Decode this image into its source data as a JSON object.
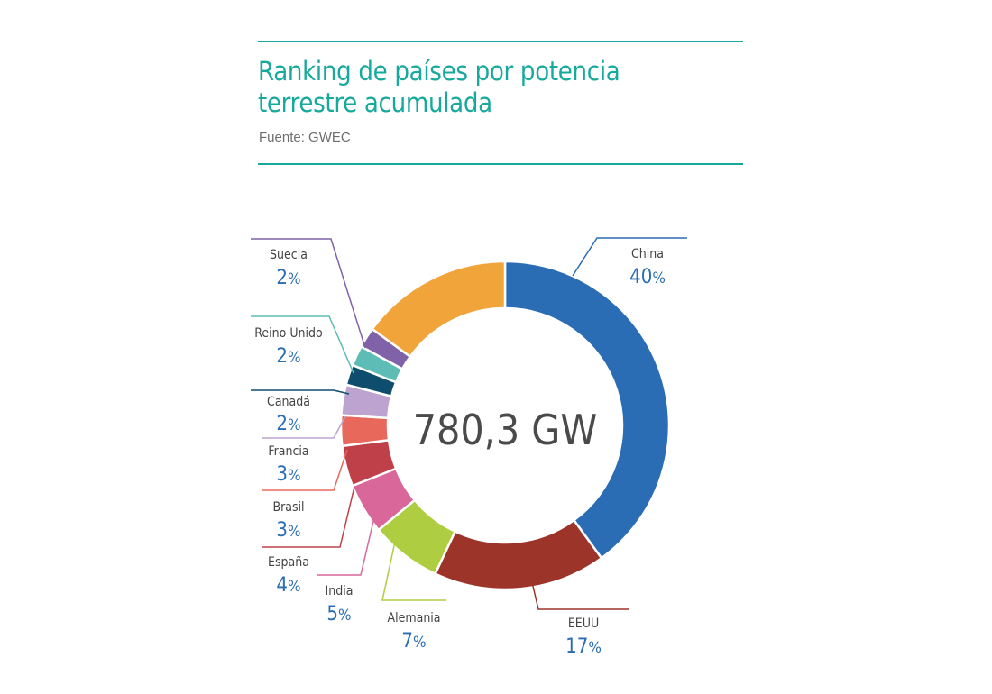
{
  "header": {
    "title_line1": "Ranking de países por potencia",
    "title_line2": "terrestre acumulada",
    "source": "Fuente: GWEC"
  },
  "chart_data": {
    "type": "pie",
    "donut": true,
    "center_label": "780,3 GW",
    "unit": "%",
    "slices": [
      {
        "name": "China",
        "value": 40,
        "label": "40%",
        "color": "#2a6db4"
      },
      {
        "name": "EEUU",
        "value": 17,
        "label": "17%",
        "color": "#9c342a"
      },
      {
        "name": "Alemania",
        "value": 7,
        "label": "7%",
        "color": "#aecd41"
      },
      {
        "name": "India",
        "value": 5,
        "label": "5%",
        "color": "#d9679a"
      },
      {
        "name": "España",
        "value": 4,
        "label": "4%",
        "color": "#c0404a"
      },
      {
        "name": "Brasil",
        "value": 3,
        "label": "3%",
        "color": "#e8685c"
      },
      {
        "name": "Francia",
        "value": 3,
        "label": "3%",
        "color": "#bda3cf"
      },
      {
        "name": "Canadá",
        "value": 2,
        "label": "2%",
        "color": "#0e4d6e"
      },
      {
        "name": "Reino Unido",
        "value": 2,
        "label": "2%",
        "color": "#5dbdb6"
      },
      {
        "name": "Suecia",
        "value": 2,
        "label": "2%",
        "color": "#7f62a8"
      },
      {
        "name": "",
        "value": 15,
        "label": "",
        "color": "#f1a43a"
      }
    ]
  },
  "colors": {
    "accent": "#17a99c",
    "value_text": "#2a6db4",
    "label_text": "#444444"
  }
}
